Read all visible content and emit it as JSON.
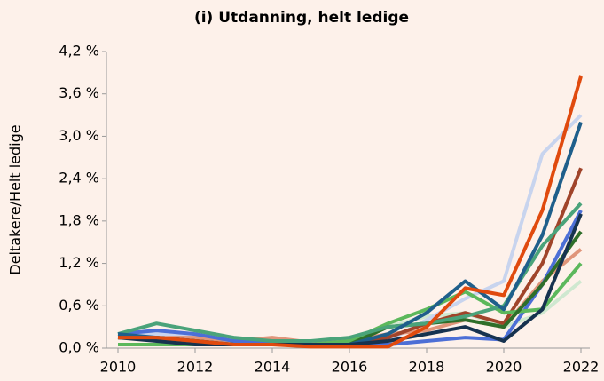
{
  "chart_data": {
    "type": "line",
    "title": "(i) Utdanning, helt ledige",
    "y_label": "Deltakere/Helt ledige",
    "x": [
      2010,
      2011,
      2012,
      2013,
      2014,
      2015,
      2016,
      2017,
      2018,
      2019,
      2020,
      2021,
      2022
    ],
    "xlim": [
      2010,
      2022
    ],
    "xticks": [
      2010,
      2012,
      2014,
      2016,
      2018,
      2020,
      2022
    ],
    "ylim": [
      0,
      4.2
    ],
    "yticks": [
      {
        "value": 0,
        "label": "0,0 %"
      },
      {
        "value": 0.6,
        "label": "0,6 %"
      },
      {
        "value": 1.2,
        "label": "1,2 %"
      },
      {
        "value": 1.8,
        "label": "1,8 %"
      },
      {
        "value": 2.4,
        "label": "2,4 %"
      },
      {
        "value": 3.0,
        "label": "3,0 %"
      },
      {
        "value": 3.6,
        "label": "3,6 %"
      },
      {
        "value": 4.2,
        "label": "4,2 %"
      }
    ],
    "grid": false,
    "series": [
      {
        "color": "#cfe8d0",
        "values": [
          0.05,
          0.05,
          0.05,
          0.05,
          0.05,
          0.05,
          0.1,
          0.3,
          0.45,
          0.5,
          0.3,
          0.5,
          0.95
        ]
      },
      {
        "color": "#c8d4ee",
        "values": [
          0.2,
          0.2,
          0.15,
          0.1,
          0.1,
          0.05,
          0.05,
          0.1,
          0.4,
          0.7,
          0.95,
          2.75,
          3.3
        ]
      },
      {
        "color": "#e0957a",
        "values": [
          0.15,
          0.15,
          0.15,
          0.1,
          0.15,
          0.08,
          0.1,
          0.2,
          0.25,
          0.4,
          0.3,
          0.95,
          1.4
        ]
      },
      {
        "color": "#4c6fd6",
        "values": [
          0.2,
          0.25,
          0.2,
          0.1,
          0.1,
          0.05,
          0.05,
          0.05,
          0.1,
          0.15,
          0.12,
          0.9,
          1.95
        ]
      },
      {
        "color": "#a0442a",
        "values": [
          0.15,
          0.15,
          0.1,
          0.05,
          0.05,
          0.05,
          0.05,
          0.15,
          0.35,
          0.5,
          0.35,
          1.2,
          2.55
        ]
      },
      {
        "color": "#5cb85c",
        "values": [
          0.05,
          0.05,
          0.05,
          0.05,
          0.05,
          0.05,
          0.1,
          0.35,
          0.55,
          0.8,
          0.5,
          0.55,
          1.2
        ]
      },
      {
        "color": "#2e6e2a",
        "values": [
          0.15,
          0.15,
          0.1,
          0.05,
          0.05,
          0.05,
          0.05,
          0.3,
          0.35,
          0.4,
          0.3,
          0.9,
          1.65
        ]
      },
      {
        "color": "#4aa37a",
        "values": [
          0.2,
          0.35,
          0.25,
          0.15,
          0.1,
          0.1,
          0.15,
          0.3,
          0.35,
          0.45,
          0.6,
          1.45,
          2.05
        ]
      },
      {
        "color": "#1f5f8b",
        "values": [
          0.2,
          0.15,
          0.1,
          0.05,
          0.05,
          0.05,
          0.05,
          0.2,
          0.5,
          0.95,
          0.55,
          1.6,
          3.2
        ]
      },
      {
        "color": "#16324f",
        "values": [
          0.15,
          0.1,
          0.05,
          0.05,
          0.05,
          0.05,
          0.05,
          0.1,
          0.2,
          0.3,
          0.1,
          0.55,
          1.9
        ]
      },
      {
        "color": "#e04a0e",
        "values": [
          0.15,
          0.15,
          0.1,
          0.05,
          0.05,
          0.02,
          0.02,
          0.02,
          0.3,
          0.85,
          0.75,
          1.95,
          3.85
        ]
      }
    ]
  }
}
